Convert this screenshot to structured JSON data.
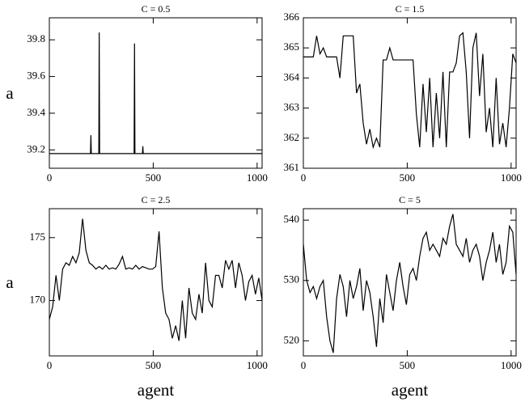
{
  "chart_data": [
    {
      "type": "line",
      "title": "C = 0.5",
      "ylabel": "a",
      "x": [
        0,
        198,
        200,
        202,
        238,
        240,
        242,
        408,
        410,
        412,
        448,
        450,
        452,
        1024
      ],
      "series": [
        {
          "color": "#000000",
          "values": [
            39.18,
            39.18,
            39.28,
            39.18,
            39.18,
            39.84,
            39.18,
            39.18,
            39.78,
            39.18,
            39.18,
            39.22,
            39.18,
            39.18
          ]
        }
      ],
      "xlim": [
        0,
        1024
      ],
      "xticks": [
        0,
        500,
        1000
      ],
      "ylim": [
        39.1,
        39.92
      ],
      "yticks": [
        39.2,
        39.4,
        39.6,
        39.8
      ]
    },
    {
      "type": "line",
      "title": "C = 1.5",
      "x": [
        0,
        16,
        32,
        48,
        64,
        80,
        96,
        112,
        128,
        144,
        160,
        176,
        192,
        208,
        224,
        240,
        256,
        272,
        288,
        304,
        320,
        336,
        352,
        368,
        384,
        400,
        416,
        432,
        448,
        464,
        480,
        496,
        512,
        528,
        544,
        560,
        576,
        592,
        608,
        624,
        640,
        656,
        672,
        688,
        704,
        720,
        736,
        752,
        768,
        784,
        800,
        816,
        832,
        848,
        864,
        880,
        896,
        912,
        928,
        944,
        960,
        976,
        992,
        1008,
        1024
      ],
      "series": [
        {
          "color": "#000000",
          "values": [
            364.7,
            364.7,
            364.7,
            364.7,
            365.4,
            364.8,
            365.0,
            364.7,
            364.7,
            364.7,
            364.7,
            364.0,
            365.4,
            365.4,
            365.4,
            365.4,
            363.5,
            363.8,
            362.5,
            361.8,
            362.3,
            361.7,
            362.0,
            361.7,
            364.6,
            364.6,
            365.0,
            364.6,
            364.6,
            364.6,
            364.6,
            364.6,
            364.6,
            364.6,
            362.8,
            361.7,
            363.8,
            362.2,
            364.0,
            361.7,
            363.5,
            362.0,
            364.2,
            361.7,
            364.2,
            364.2,
            364.5,
            365.4,
            365.5,
            364.2,
            362.0,
            365.0,
            365.5,
            363.4,
            364.8,
            362.2,
            363.0,
            361.7,
            364.0,
            361.8,
            362.5,
            361.7,
            363.0,
            364.8,
            364.5
          ]
        }
      ],
      "xlim": [
        0,
        1024
      ],
      "xticks": [
        0,
        500,
        1000
      ],
      "ylim": [
        361,
        366
      ],
      "yticks": [
        361,
        362,
        363,
        364,
        365,
        366
      ]
    },
    {
      "type": "line",
      "title": "C = 2.5",
      "ylabel": "a",
      "xlabel": "agent",
      "x": [
        0,
        16,
        32,
        48,
        64,
        80,
        96,
        112,
        128,
        144,
        160,
        176,
        192,
        208,
        224,
        240,
        256,
        272,
        288,
        304,
        320,
        336,
        352,
        368,
        384,
        400,
        416,
        432,
        448,
        464,
        480,
        496,
        512,
        528,
        544,
        560,
        576,
        592,
        608,
        624,
        640,
        656,
        672,
        688,
        704,
        720,
        736,
        752,
        768,
        784,
        800,
        816,
        832,
        848,
        864,
        880,
        896,
        912,
        928,
        944,
        960,
        976,
        992,
        1008,
        1024
      ],
      "series": [
        {
          "color": "#000000",
          "values": [
            168.5,
            169.5,
            172,
            170,
            172.5,
            173,
            172.8,
            173.5,
            173,
            173.8,
            176.5,
            174,
            173,
            172.8,
            172.5,
            172.7,
            172.5,
            172.8,
            172.5,
            172.6,
            172.5,
            172.9,
            173.5,
            172.5,
            172.6,
            172.5,
            172.8,
            172.5,
            172.7,
            172.6,
            172.5,
            172.5,
            172.7,
            175.5,
            171,
            169,
            168.5,
            167,
            168,
            166.8,
            170,
            167,
            171,
            169,
            168.5,
            170.5,
            169,
            173,
            170,
            169.5,
            172,
            172,
            171,
            173.2,
            172.5,
            173.2,
            171,
            173,
            172,
            170,
            171.5,
            172,
            170.5,
            171.8,
            170
          ]
        }
      ],
      "xlim": [
        0,
        1024
      ],
      "xticks": [
        0,
        500,
        1000
      ],
      "ylim": [
        165.6,
        177.3
      ],
      "yticks": [
        170,
        175
      ]
    },
    {
      "type": "line",
      "title": "C = 5",
      "xlabel": "agent",
      "x": [
        0,
        16,
        32,
        48,
        64,
        80,
        96,
        112,
        128,
        144,
        160,
        176,
        192,
        208,
        224,
        240,
        256,
        272,
        288,
        304,
        320,
        336,
        352,
        368,
        384,
        400,
        416,
        432,
        448,
        464,
        480,
        496,
        512,
        528,
        544,
        560,
        576,
        592,
        608,
        624,
        640,
        656,
        672,
        688,
        704,
        720,
        736,
        752,
        768,
        784,
        800,
        816,
        832,
        848,
        864,
        880,
        896,
        912,
        928,
        944,
        960,
        976,
        992,
        1008,
        1024
      ],
      "series": [
        {
          "color": "#000000",
          "values": [
            536,
            530,
            528,
            529,
            527,
            529,
            530,
            524,
            520,
            518,
            527,
            531,
            529,
            524,
            530,
            527,
            529,
            532,
            525,
            530,
            528,
            524,
            519,
            527,
            523,
            531,
            528,
            525,
            530,
            533,
            529,
            526,
            531,
            532,
            530,
            534,
            537,
            538,
            535,
            536,
            535,
            534,
            537,
            536,
            539,
            541,
            536,
            535,
            534,
            537,
            533,
            535,
            536,
            534,
            530,
            533,
            535,
            538,
            533,
            536,
            531,
            533,
            539,
            538,
            531
          ]
        }
      ],
      "xlim": [
        0,
        1024
      ],
      "xticks": [
        0,
        500,
        1000
      ],
      "ylim": [
        517.5,
        541.9
      ],
      "yticks": [
        520,
        530,
        540
      ]
    }
  ]
}
